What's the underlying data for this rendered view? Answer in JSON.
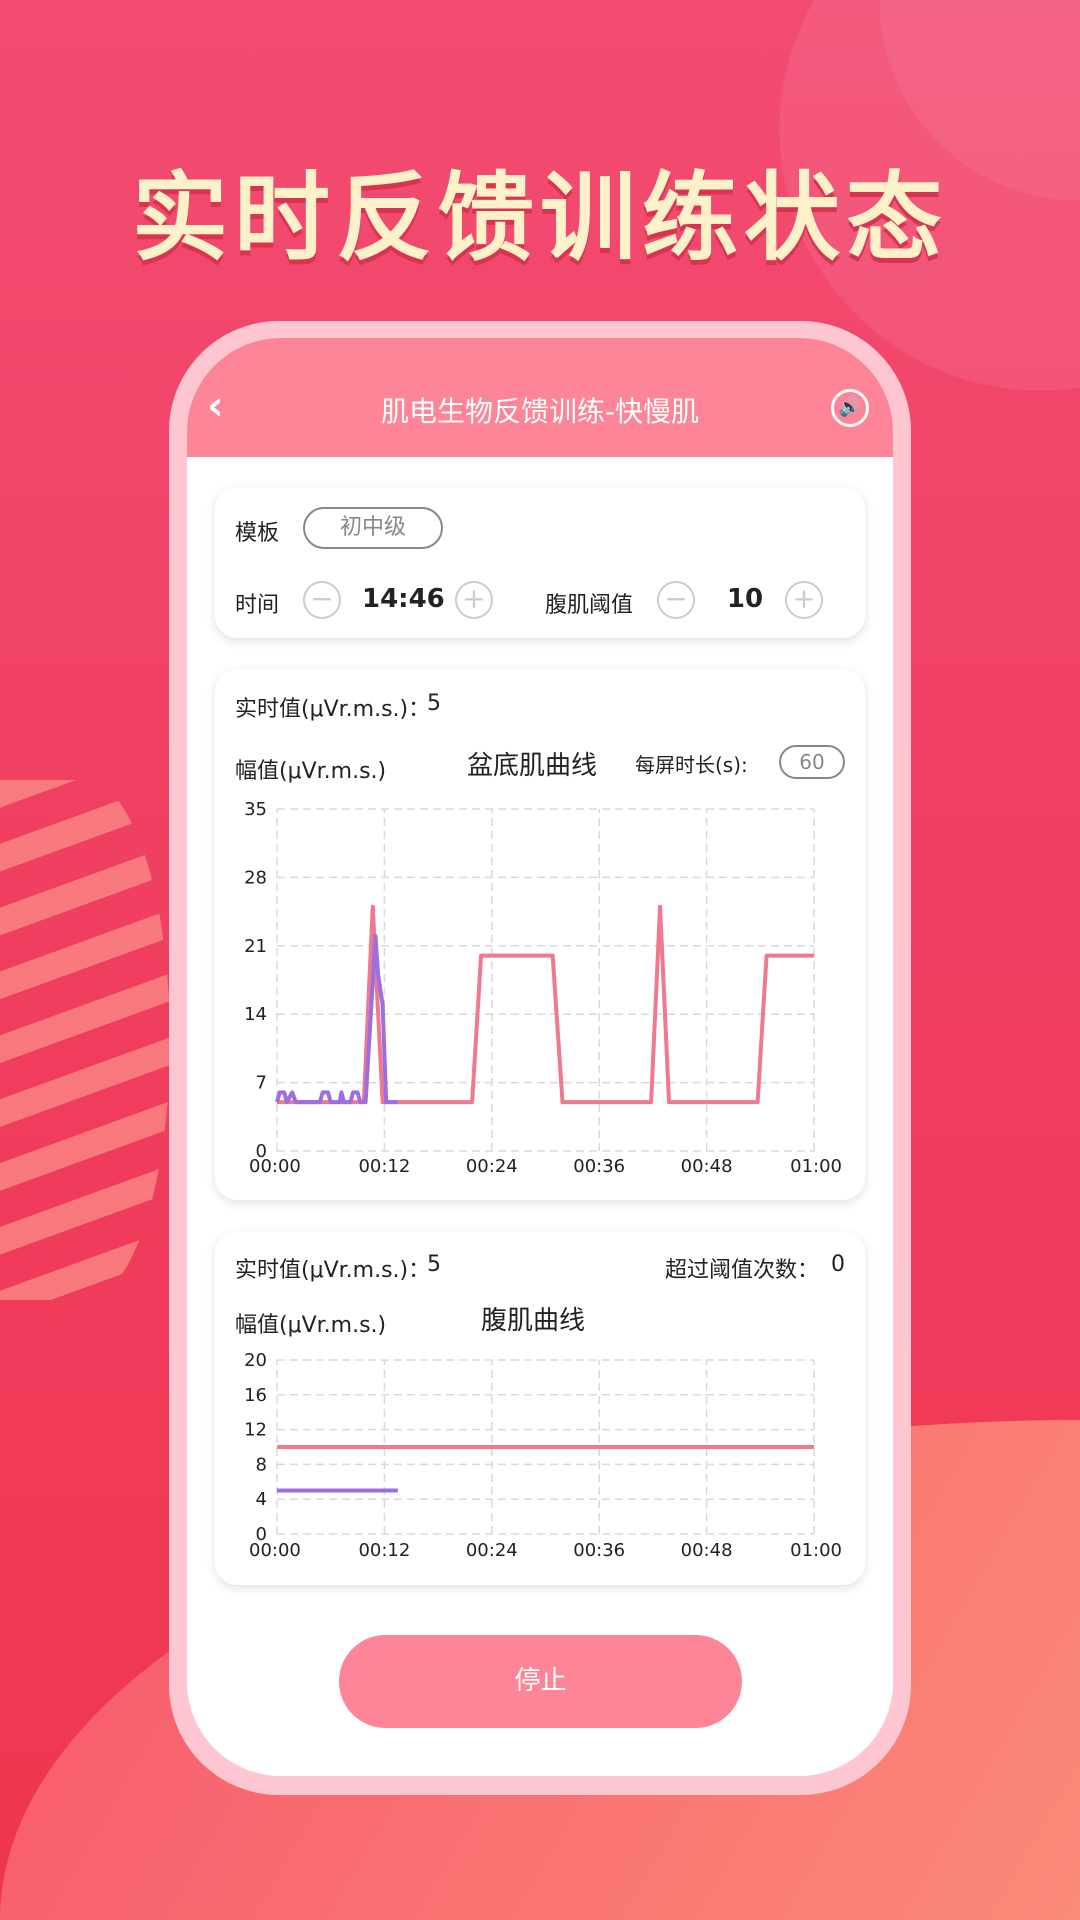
{
  "headline": "实时反馈训练状态",
  "header": {
    "title": "肌电生物反馈训练-快慢肌",
    "back_icon": "chevron-left-icon",
    "sound_icon": "speaker-icon"
  },
  "settings": {
    "template_label": "模板",
    "template_value": "初中级",
    "time_label": "时间",
    "time_value": "14:46",
    "threshold_label": "腹肌阈值",
    "threshold_value": "10",
    "minus": "−",
    "plus": "+"
  },
  "pelvic": {
    "realtime_label": "实时值(μVr.m.s.)：",
    "realtime_value": "5",
    "amp_label": "幅值(μVr.m.s.)",
    "title": "盆底肌曲线",
    "duration_label": "每屏时长(s):",
    "duration_value": "60"
  },
  "abdominal": {
    "realtime_label": "实时值(μVr.m.s.)：",
    "realtime_value": "5",
    "exceed_label": "超过阈值次数：",
    "exceed_value": "0",
    "amp_label": "幅值(μVr.m.s.)",
    "title": "腹肌曲线"
  },
  "stop_label": "停止",
  "colors": {
    "accent": "#fd8597",
    "target_line": "#f0788f",
    "actual_line": "#9b6fe0"
  },
  "chart_data": [
    {
      "type": "line",
      "title": "盆底肌曲线",
      "ylabel": "幅值(μVr.m.s.)",
      "ylim": [
        0,
        35
      ],
      "yticks": [
        0,
        7,
        14,
        21,
        28,
        35
      ],
      "xlim": [
        0,
        60
      ],
      "xticks": [
        "00:00",
        "00:12",
        "00:24",
        "00:36",
        "00:48",
        "01:00"
      ],
      "grid": true,
      "series": [
        {
          "color": "#f0788f",
          "points": [
            [
              0,
              5
            ],
            [
              9.7,
              5
            ],
            [
              10.7,
              25
            ],
            [
              11.8,
              5
            ],
            [
              21.8,
              5
            ],
            [
              22.8,
              20
            ],
            [
              30.8,
              20
            ],
            [
              31.9,
              5
            ],
            [
              41.8,
              5
            ],
            [
              42.8,
              25
            ],
            [
              43.8,
              5
            ],
            [
              53.7,
              5
            ],
            [
              54.7,
              20
            ],
            [
              60,
              20
            ]
          ]
        },
        {
          "color": "#9b6fe0",
          "points": [
            [
              0,
              5
            ],
            [
              0.3,
              6
            ],
            [
              0.8,
              6
            ],
            [
              1.1,
              5
            ],
            [
              1.7,
              6
            ],
            [
              2.1,
              5
            ],
            [
              4.8,
              5
            ],
            [
              5.1,
              6
            ],
            [
              5.7,
              6
            ],
            [
              6,
              5
            ],
            [
              7,
              5
            ],
            [
              7.2,
              6
            ],
            [
              7.5,
              5
            ],
            [
              8.2,
              5
            ],
            [
              8.5,
              6
            ],
            [
              9,
              6
            ],
            [
              9.3,
              5
            ],
            [
              9.9,
              5
            ],
            [
              11,
              22
            ],
            [
              11.3,
              18
            ],
            [
              11.8,
              15
            ],
            [
              12.2,
              5
            ],
            [
              13.5,
              5
            ]
          ]
        }
      ]
    },
    {
      "type": "line",
      "title": "腹肌曲线",
      "ylabel": "幅值(μVr.m.s.)",
      "ylim": [
        0,
        20
      ],
      "yticks": [
        0,
        4,
        8,
        12,
        16,
        20
      ],
      "xlim": [
        0,
        60
      ],
      "xticks": [
        "00:00",
        "00:12",
        "00:24",
        "00:36",
        "00:48",
        "01:00"
      ],
      "grid": true,
      "series": [
        {
          "color": "#f0788f",
          "points": [
            [
              0,
              10
            ],
            [
              60,
              10
            ]
          ]
        },
        {
          "color": "#9b6fe0",
          "points": [
            [
              0,
              5
            ],
            [
              13.5,
              5
            ]
          ]
        }
      ]
    }
  ]
}
